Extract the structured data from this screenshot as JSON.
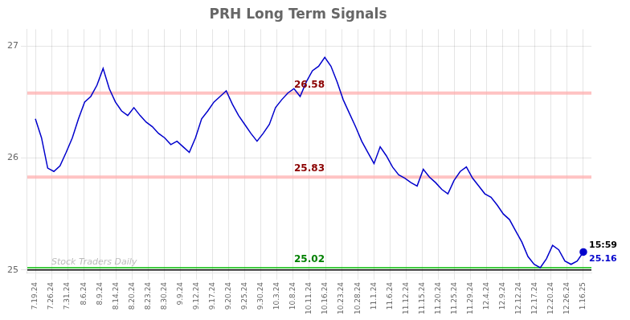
{
  "chart_data": {
    "type": "line",
    "title": "PRH Long Term Signals",
    "color": "#0000cc",
    "x": [
      0,
      0.382,
      0.764,
      1.1461,
      1.5281,
      1.9101,
      2.2921,
      2.6742,
      3.0562,
      3.4382,
      3.8202,
      4.2022,
      4.5843,
      4.9663,
      5.3483,
      5.7303,
      6.1124,
      6.4944,
      6.8764,
      7.2584,
      7.6404,
      8.0225,
      8.4045,
      8.7865,
      9.1685,
      9.5506,
      9.9326,
      10.3146,
      10.6966,
      11.0787,
      11.4607,
      11.8427,
      12.2247,
      12.6067,
      12.9888,
      13.3708,
      13.7528,
      14.1348,
      14.5169,
      14.8989,
      15.2809,
      15.6629,
      16.0449,
      16.427,
      16.809,
      17.191,
      17.573,
      17.9551,
      18.3371,
      18.7191,
      19.1011,
      19.4831,
      19.8652,
      20.2472,
      20.6292,
      21.0112,
      21.3933,
      21.7753,
      22.1573,
      22.5393,
      22.9213,
      23.3034,
      23.6854,
      24.0674,
      24.4494,
      24.8315,
      25.2135,
      25.5955,
      25.9775,
      26.3596,
      26.7416,
      27.1236,
      27.5056,
      27.8876,
      28.2697,
      28.6517,
      29.0337,
      29.4157,
      29.7978,
      30.1798,
      30.5618,
      30.9438,
      31.3258,
      31.7079,
      32.0899,
      32.4719,
      32.8539,
      33.236,
      33.618,
      34
    ],
    "values": [
      26.35,
      26.18,
      25.91,
      25.88,
      25.93,
      26.05,
      26.18,
      26.35,
      26.5,
      26.55,
      26.65,
      26.8,
      26.62,
      26.5,
      26.42,
      26.38,
      26.45,
      26.38,
      26.32,
      26.28,
      26.22,
      26.18,
      26.12,
      26.15,
      26.1,
      26.05,
      26.18,
      26.35,
      26.42,
      26.5,
      26.55,
      26.6,
      26.48,
      26.38,
      26.3,
      26.22,
      26.15,
      26.22,
      26.3,
      26.45,
      26.52,
      26.58,
      26.62,
      26.55,
      26.68,
      26.78,
      26.82,
      26.9,
      26.82,
      26.68,
      26.52,
      26.4,
      26.28,
      26.15,
      26.05,
      25.95,
      26.1,
      26.02,
      25.92,
      25.85,
      25.82,
      25.78,
      25.75,
      25.9,
      25.83,
      25.78,
      25.72,
      25.68,
      25.8,
      25.88,
      25.92,
      25.82,
      25.75,
      25.68,
      25.65,
      25.58,
      25.5,
      25.45,
      25.35,
      25.25,
      25.12,
      25.05,
      25.02,
      25.1,
      25.22,
      25.18,
      25.08,
      25.05,
      25.08,
      25.16
    ],
    "xlim": [
      -0.5,
      34.5
    ],
    "xticks": [
      {
        "value": 0,
        "label": "7.19.24"
      },
      {
        "value": 1,
        "label": "7.26.24"
      },
      {
        "value": 2,
        "label": "7.31.24"
      },
      {
        "value": 3,
        "label": "8.6.24"
      },
      {
        "value": 4,
        "label": "8.9.24"
      },
      {
        "value": 5,
        "label": "8.14.24"
      },
      {
        "value": 6,
        "label": "8.20.24"
      },
      {
        "value": 7,
        "label": "8.23.24"
      },
      {
        "value": 8,
        "label": "8.30.24"
      },
      {
        "value": 9,
        "label": "9.9.24"
      },
      {
        "value": 10,
        "label": "9.12.24"
      },
      {
        "value": 11,
        "label": "9.17.24"
      },
      {
        "value": 12,
        "label": "9.20.24"
      },
      {
        "value": 13,
        "label": "9.25.24"
      },
      {
        "value": 14,
        "label": "9.30.24"
      },
      {
        "value": 15,
        "label": "10.3.24"
      },
      {
        "value": 16,
        "label": "10.8.24"
      },
      {
        "value": 17,
        "label": "10.11.24"
      },
      {
        "value": 18,
        "label": "10.16.24"
      },
      {
        "value": 19,
        "label": "10.23.24"
      },
      {
        "value": 20,
        "label": "10.28.24"
      },
      {
        "value": 21,
        "label": "11.1.24"
      },
      {
        "value": 22,
        "label": "11.6.24"
      },
      {
        "value": 23,
        "label": "11.12.24"
      },
      {
        "value": 24,
        "label": "11.15.24"
      },
      {
        "value": 25,
        "label": "11.20.24"
      },
      {
        "value": 26,
        "label": "11.25.24"
      },
      {
        "value": 27,
        "label": "11.29.24"
      },
      {
        "value": 28,
        "label": "12.4.24"
      },
      {
        "value": 29,
        "label": "12.9.24"
      },
      {
        "value": 30,
        "label": "12.12.24"
      },
      {
        "value": 31,
        "label": "12.17.24"
      },
      {
        "value": 32,
        "label": "12.20.24"
      },
      {
        "value": 33,
        "label": "12.26.24"
      },
      {
        "value": 34,
        "label": "1.16.25"
      }
    ],
    "ylim": [
      24.97,
      27.15
    ],
    "yticks": [
      25,
      26,
      27
    ],
    "grid": true,
    "bands": [
      {
        "y": 26.58,
        "color": "#ffaaaa"
      },
      {
        "y": 25.83,
        "color": "#ffaaaa"
      }
    ],
    "lines": [
      {
        "y": 25.02,
        "color": "#00bb00"
      },
      {
        "y": 25.0,
        "color": "black"
      }
    ],
    "annotations": [
      {
        "text": "26.58",
        "y": 26.58,
        "color": "darkred"
      },
      {
        "text": "25.83",
        "y": 25.83,
        "color": "darkred"
      },
      {
        "text": "25.02",
        "y": 25.02,
        "color": "green"
      },
      {
        "text": "15:59",
        "x": 34,
        "y": 25.16,
        "color": "black"
      },
      {
        "text": "25.16",
        "x": 34,
        "y": 25.16,
        "color": "#0000cc"
      },
      {
        "text": "Stock Traders Daily",
        "color": "#aaaaaa"
      }
    ]
  }
}
